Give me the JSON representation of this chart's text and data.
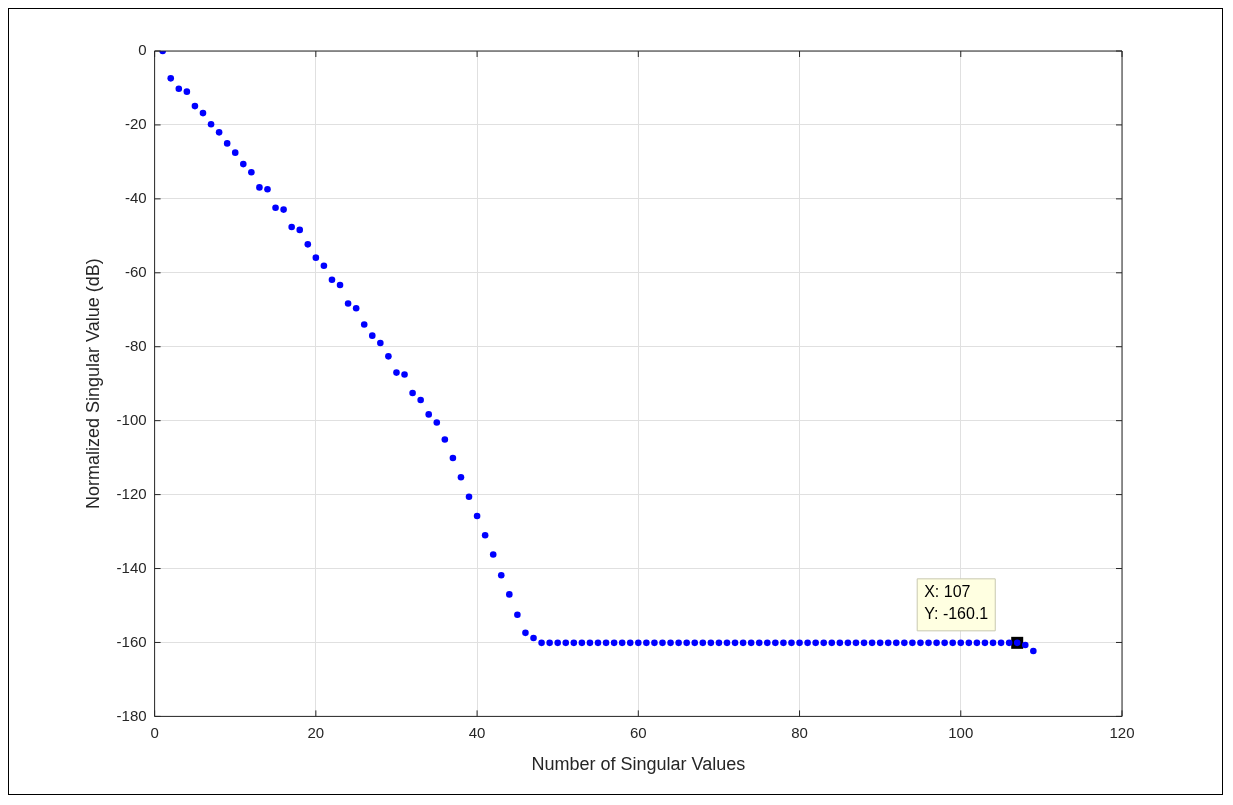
{
  "chart_data": {
    "type": "scatter",
    "xlabel": "Number of Singular Values",
    "ylabel": "Normalized Singular Value (dB)",
    "x": [
      1,
      2,
      3,
      4,
      5,
      6,
      7,
      8,
      9,
      10,
      11,
      12,
      13,
      14,
      15,
      16,
      17,
      18,
      19,
      20,
      21,
      22,
      23,
      24,
      25,
      26,
      27,
      28,
      29,
      30,
      31,
      32,
      33,
      34,
      35,
      36,
      37,
      38,
      39,
      40,
      41,
      42,
      43,
      44,
      45,
      46,
      47,
      48,
      49,
      50,
      51,
      52,
      53,
      54,
      55,
      56,
      57,
      58,
      59,
      60,
      61,
      62,
      63,
      64,
      65,
      66,
      67,
      68,
      69,
      70,
      71,
      72,
      73,
      74,
      75,
      76,
      77,
      78,
      79,
      80,
      81,
      82,
      83,
      84,
      85,
      86,
      87,
      88,
      89,
      90,
      91,
      92,
      93,
      94,
      95,
      96,
      97,
      98,
      99,
      100,
      101,
      102,
      103,
      104,
      105,
      106,
      107,
      108,
      109
    ],
    "series": [
      {
        "color": "#0000ff",
        "values": [
          0,
          -7.4,
          -10.2,
          -11,
          -14.9,
          -16.8,
          -19.8,
          -22,
          -25,
          -27.5,
          -30.6,
          -32.8,
          -36.9,
          -37.4,
          -42.4,
          -42.9,
          -47.6,
          -48.4,
          -52.3,
          -55.9,
          -58.1,
          -61.9,
          -63.3,
          -68.3,
          -69.6,
          -74,
          -77,
          -79,
          -82.6,
          -87,
          -87.5,
          -92.5,
          -94.4,
          -98.3,
          -100.5,
          -105.1,
          -110.1,
          -115.3,
          -120.6,
          -125.8,
          -131,
          -136.2,
          -141.8,
          -147,
          -152.5,
          -157.4,
          -158.8,
          -160.1,
          -160.1,
          -160.1,
          -160.1,
          -160.1,
          -160.1,
          -160.1,
          -160.1,
          -160.1,
          -160.1,
          -160.1,
          -160.1,
          -160.1,
          -160.1,
          -160.1,
          -160.1,
          -160.1,
          -160.1,
          -160.1,
          -160.1,
          -160.1,
          -160.1,
          -160.1,
          -160.1,
          -160.1,
          -160.1,
          -160.1,
          -160.1,
          -160.1,
          -160.1,
          -160.1,
          -160.1,
          -160.1,
          -160.1,
          -160.1,
          -160.1,
          -160.1,
          -160.1,
          -160.1,
          -160.1,
          -160.1,
          -160.1,
          -160.1,
          -160.1,
          -160.1,
          -160.1,
          -160.1,
          -160.1,
          -160.1,
          -160.1,
          -160.1,
          -160.1,
          -160.1,
          -160.1,
          -160.1,
          -160.1,
          -160.1,
          -160.1,
          -160.1,
          -160.1,
          -160.7,
          -162.3
        ]
      }
    ],
    "xlim": [
      0,
      120
    ],
    "xticks": [
      0,
      20,
      40,
      60,
      80,
      100,
      120
    ],
    "ylim": [
      -180,
      0
    ],
    "yticks": [
      -180,
      -160,
      -140,
      -120,
      -100,
      -80,
      -60,
      -40,
      -20,
      0
    ],
    "grid": true,
    "marker": "circle",
    "legend": false,
    "annotations": [
      {
        "text": "X: 107\nY: -160.1",
        "x": 107,
        "y": -160.1
      }
    ]
  }
}
